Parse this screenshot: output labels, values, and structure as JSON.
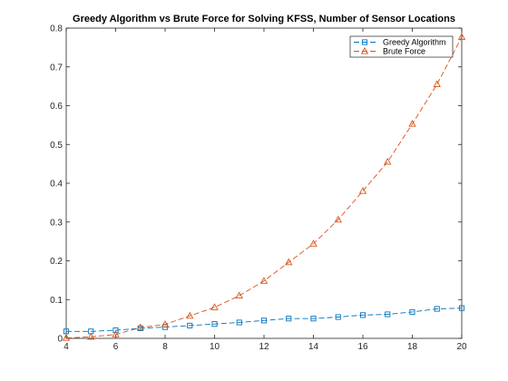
{
  "chart_data": {
    "type": "line",
    "title": "Greedy Algorithm vs Brute Force for Solving KFSS, Number of Sensor Locations",
    "xlabel": "",
    "ylabel": "",
    "xlim": [
      4,
      20
    ],
    "ylim": [
      0,
      0.8
    ],
    "xticks": [
      4,
      6,
      8,
      10,
      12,
      14,
      16,
      18,
      20
    ],
    "yticks": [
      0,
      0.1,
      0.2,
      0.3,
      0.4,
      0.5,
      0.6,
      0.7,
      0.8
    ],
    "grid": false,
    "legend_position": "top-right",
    "x": [
      4,
      5,
      6,
      7,
      8,
      9,
      10,
      11,
      12,
      13,
      14,
      15,
      16,
      17,
      18,
      19,
      20
    ],
    "series": [
      {
        "name": "Greedy Algorithm",
        "color": "#0072BD",
        "marker": "square",
        "values": [
          0.018,
          0.018,
          0.021,
          0.026,
          0.029,
          0.033,
          0.037,
          0.041,
          0.046,
          0.051,
          0.051,
          0.055,
          0.06,
          0.062,
          0.068,
          0.076,
          0.078
        ]
      },
      {
        "name": "Brute Force",
        "color": "#D95319",
        "marker": "triangle",
        "values": [
          0.001,
          0.004,
          0.01,
          0.028,
          0.036,
          0.058,
          0.08,
          0.11,
          0.148,
          0.196,
          0.244,
          0.306,
          0.38,
          0.455,
          0.553,
          0.655,
          0.777
        ]
      }
    ]
  }
}
